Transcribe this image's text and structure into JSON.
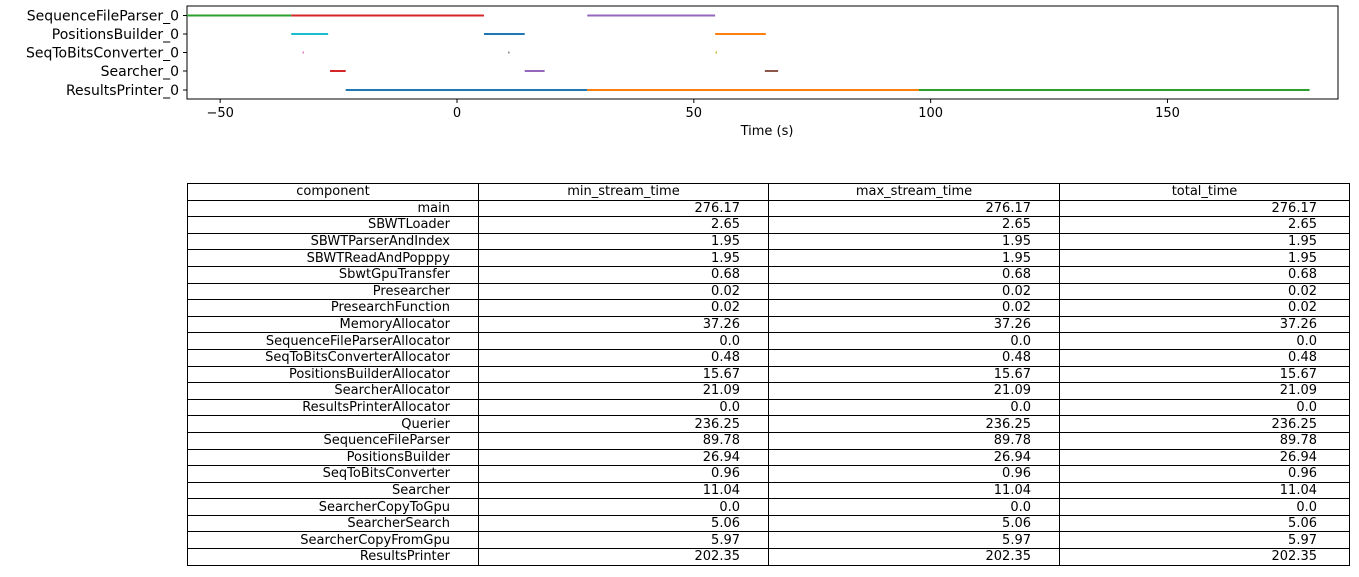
{
  "chart_data": [
    {
      "type": "timeline",
      "xlabel": "Time (s)",
      "xlim": [
        -57,
        186
      ],
      "xticks": [
        -50,
        0,
        50,
        100,
        150
      ],
      "rows": [
        "SequenceFileParser_0",
        "PositionsBuilder_0",
        "SeqToBitsConverter_0",
        "Searcher_0",
        "ResultsPrinter_0"
      ],
      "segments": [
        {
          "row": 0,
          "start": -57.0,
          "end": -35.0,
          "color": "#2ca02c"
        },
        {
          "row": 0,
          "start": -35.0,
          "end": 5.7,
          "color": "#d62728"
        },
        {
          "row": 0,
          "start": 27.5,
          "end": 54.5,
          "color": "#9467bd"
        },
        {
          "row": 1,
          "start": -35.0,
          "end": -27.2,
          "color": "#17becf"
        },
        {
          "row": 1,
          "start": 5.7,
          "end": 14.3,
          "color": "#1f77b4"
        },
        {
          "row": 1,
          "start": 54.5,
          "end": 65.2,
          "color": "#ff7f0e"
        },
        {
          "row": 2,
          "start": -32.6,
          "end": -32.3,
          "color": "#e377c2"
        },
        {
          "row": 2,
          "start": 10.8,
          "end": 11.1,
          "color": "#7f7f7f"
        },
        {
          "row": 2,
          "start": 54.6,
          "end": 54.9,
          "color": "#bcbd22"
        },
        {
          "row": 3,
          "start": -26.8,
          "end": -23.5,
          "color": "#d62728"
        },
        {
          "row": 3,
          "start": 14.3,
          "end": 18.5,
          "color": "#9467bd"
        },
        {
          "row": 3,
          "start": 65.0,
          "end": 67.8,
          "color": "#8c564b"
        },
        {
          "row": 4,
          "start": -23.5,
          "end": 27.5,
          "color": "#1f77b4"
        },
        {
          "row": 4,
          "start": 27.5,
          "end": 97.5,
          "color": "#ff7f0e"
        },
        {
          "row": 4,
          "start": 97.5,
          "end": 180.0,
          "color": "#2ca02c"
        }
      ]
    },
    {
      "type": "table",
      "columns": [
        "component",
        "min_stream_time",
        "max_stream_time",
        "total_time"
      ],
      "rows": [
        [
          "main",
          "276.17",
          "276.17",
          "276.17"
        ],
        [
          "SBWTLoader",
          "2.65",
          "2.65",
          "2.65"
        ],
        [
          "SBWTParserAndIndex",
          "1.95",
          "1.95",
          "1.95"
        ],
        [
          "SBWTReadAndPopppy",
          "1.95",
          "1.95",
          "1.95"
        ],
        [
          "SbwtGpuTransfer",
          "0.68",
          "0.68",
          "0.68"
        ],
        [
          "Presearcher",
          "0.02",
          "0.02",
          "0.02"
        ],
        [
          "PresearchFunction",
          "0.02",
          "0.02",
          "0.02"
        ],
        [
          "MemoryAllocator",
          "37.26",
          "37.26",
          "37.26"
        ],
        [
          "SequenceFileParserAllocator",
          "0.0",
          "0.0",
          "0.0"
        ],
        [
          "SeqToBitsConverterAllocator",
          "0.48",
          "0.48",
          "0.48"
        ],
        [
          "PositionsBuilderAllocator",
          "15.67",
          "15.67",
          "15.67"
        ],
        [
          "SearcherAllocator",
          "21.09",
          "21.09",
          "21.09"
        ],
        [
          "ResultsPrinterAllocator",
          "0.0",
          "0.0",
          "0.0"
        ],
        [
          "Querier",
          "236.25",
          "236.25",
          "236.25"
        ],
        [
          "SequenceFileParser",
          "89.78",
          "89.78",
          "89.78"
        ],
        [
          "PositionsBuilder",
          "26.94",
          "26.94",
          "26.94"
        ],
        [
          "SeqToBitsConverter",
          "0.96",
          "0.96",
          "0.96"
        ],
        [
          "Searcher",
          "11.04",
          "11.04",
          "11.04"
        ],
        [
          "SearcherCopyToGpu",
          "0.0",
          "0.0",
          "0.0"
        ],
        [
          "SearcherSearch",
          "5.06",
          "5.06",
          "5.06"
        ],
        [
          "SearcherCopyFromGpu",
          "5.97",
          "5.97",
          "5.97"
        ],
        [
          "ResultsPrinter",
          "202.35",
          "202.35",
          "202.35"
        ]
      ]
    }
  ]
}
